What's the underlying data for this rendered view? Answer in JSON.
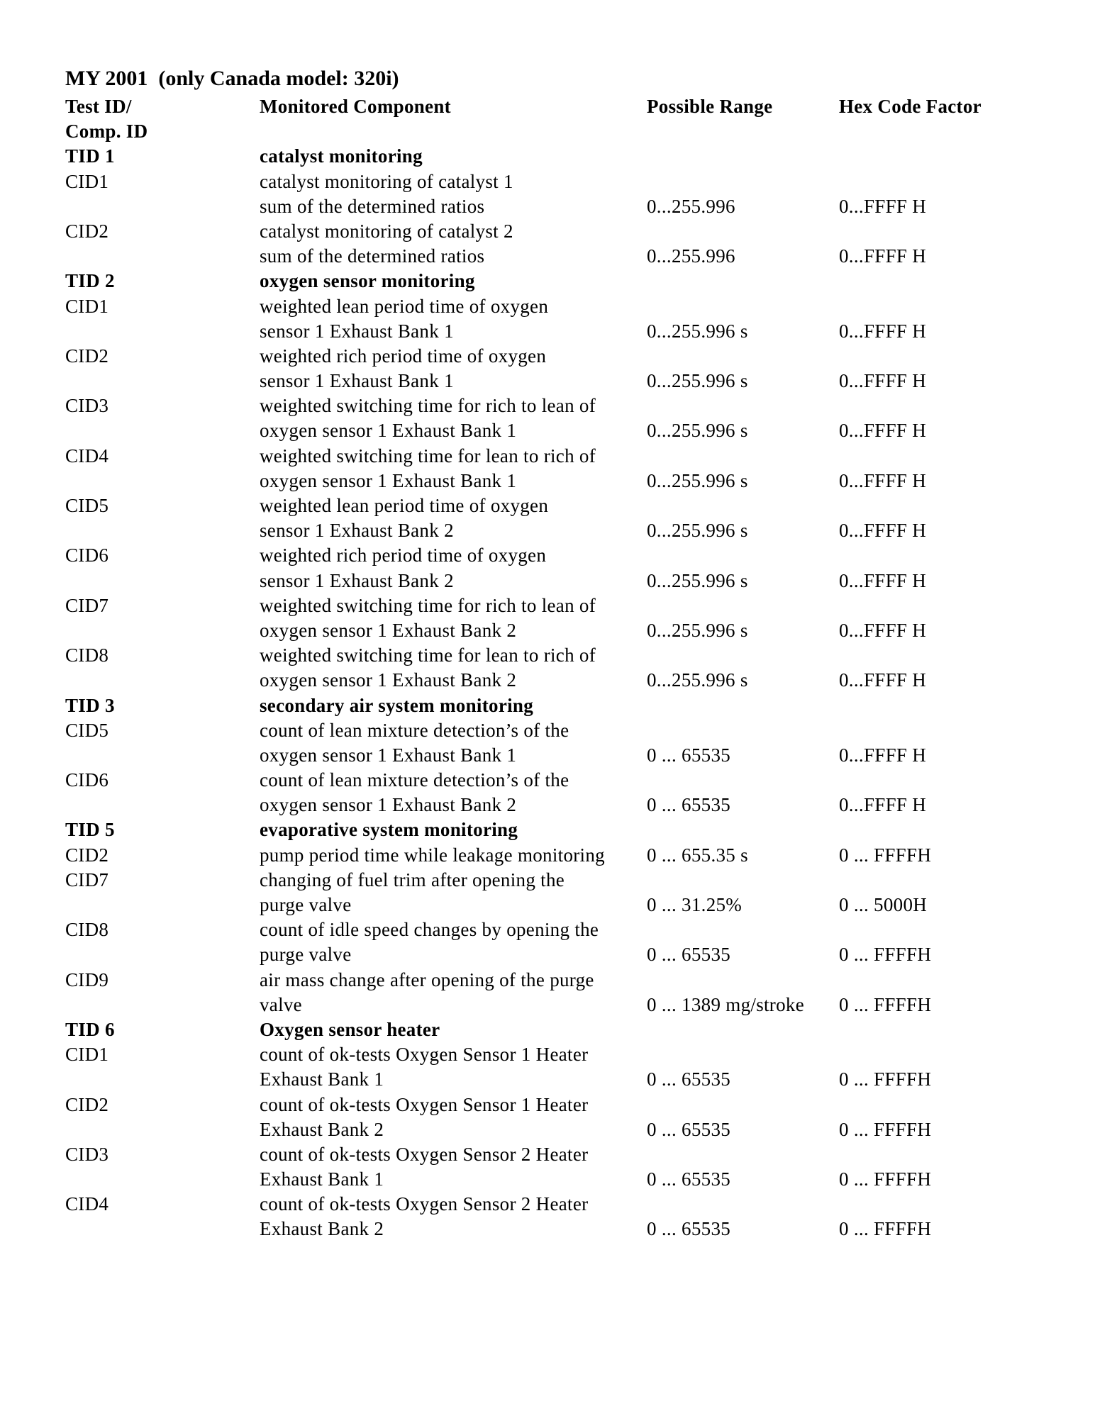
{
  "title": "MY 2001  (only Canada model: 320i)",
  "columns": [
    "Test ID/",
    "Monitored Component",
    "Possible Range",
    "Hex Code Factor"
  ],
  "column_header_line2": "Comp. ID",
  "rows": [
    {
      "id": "TID 1",
      "text": "catalyst monitoring",
      "range": "",
      "hex": "",
      "bold": true
    },
    {
      "id": "CID1",
      "text": "catalyst monitoring of catalyst 1",
      "range": "",
      "hex": ""
    },
    {
      "id": "",
      "text": "sum of the determined ratios",
      "range": "0...255.996",
      "hex": "0...FFFF H"
    },
    {
      "id": "CID2",
      "text": "catalyst monitoring of catalyst 2",
      "range": "",
      "hex": ""
    },
    {
      "id": "",
      "text": "sum of the determined ratios",
      "range": "0...255.996",
      "hex": "0...FFFF H"
    },
    {
      "id": "TID 2",
      "text": "oxygen sensor monitoring",
      "range": "",
      "hex": "",
      "bold": true
    },
    {
      "id": "CID1",
      "text": "weighted lean period time of oxygen",
      "range": "",
      "hex": ""
    },
    {
      "id": "",
      "text": "sensor 1 Exhaust Bank 1",
      "range": "0...255.996 s",
      "hex": "0...FFFF H"
    },
    {
      "id": "CID2",
      "text": "weighted rich period time of oxygen",
      "range": "",
      "hex": ""
    },
    {
      "id": "",
      "text": "sensor 1 Exhaust Bank 1",
      "range": "0...255.996 s",
      "hex": "0...FFFF H"
    },
    {
      "id": "CID3",
      "text": "weighted switching time for rich to lean of",
      "range": "",
      "hex": ""
    },
    {
      "id": "",
      "text": "oxygen sensor 1 Exhaust Bank 1",
      "range": "0...255.996 s",
      "hex": "0...FFFF H"
    },
    {
      "id": "CID4",
      "text": "weighted switching time for lean to rich of",
      "range": "",
      "hex": ""
    },
    {
      "id": "",
      "text": "oxygen sensor 1 Exhaust Bank 1",
      "range": "0...255.996 s",
      "hex": "0...FFFF H"
    },
    {
      "id": "CID5",
      "text": "weighted lean period time of oxygen",
      "range": "",
      "hex": ""
    },
    {
      "id": "",
      "text": "sensor 1 Exhaust Bank 2",
      "range": "0...255.996 s",
      "hex": "0...FFFF H"
    },
    {
      "id": "CID6",
      "text": "weighted rich period time of oxygen",
      "range": "",
      "hex": ""
    },
    {
      "id": "",
      "text": "sensor 1 Exhaust Bank 2",
      "range": "0...255.996 s",
      "hex": "0...FFFF H"
    },
    {
      "id": "CID7",
      "text": "weighted switching time for rich to lean of",
      "range": "",
      "hex": ""
    },
    {
      "id": "",
      "text": "oxygen sensor 1 Exhaust Bank 2",
      "range": "0...255.996 s",
      "hex": "0...FFFF H"
    },
    {
      "id": "CID8",
      "text": "weighted switching time for lean to rich of",
      "range": "",
      "hex": ""
    },
    {
      "id": "",
      "text": "oxygen sensor 1 Exhaust Bank 2",
      "range": "0...255.996 s",
      "hex": "0...FFFF H"
    },
    {
      "id": "TID 3",
      "text": "secondary air system monitoring",
      "range": "",
      "hex": "",
      "bold": true
    },
    {
      "id": "CID5",
      "text": "count of lean mixture detection’s of the",
      "range": "",
      "hex": ""
    },
    {
      "id": "",
      "text": "oxygen sensor 1 Exhaust Bank 1",
      "range": "0 ... 65535",
      "hex": "0...FFFF H"
    },
    {
      "id": "CID6",
      "text": "count of lean mixture detection’s of the",
      "range": "",
      "hex": ""
    },
    {
      "id": "",
      "text": "oxygen sensor 1 Exhaust Bank 2",
      "range": "0 ... 65535",
      "hex": "0...FFFF H"
    },
    {
      "id": "TID 5",
      "text": "evaporative system monitoring",
      "range": "",
      "hex": "",
      "bold": true
    },
    {
      "id": "CID2",
      "text": "pump period time while leakage monitoring",
      "range": "0 ... 655.35 s",
      "hex": "0 ... FFFFH"
    },
    {
      "id": "CID7",
      "text": "changing of fuel trim after opening the",
      "range": "",
      "hex": ""
    },
    {
      "id": "",
      "text": "purge valve",
      "range": "0 ... 31.25%",
      "hex": "0 ... 5000H"
    },
    {
      "id": "CID8",
      "text": "count of idle speed changes by opening the",
      "range": "",
      "hex": ""
    },
    {
      "id": "",
      "text": "purge valve",
      "range": "0 ... 65535",
      "hex": "0 ... FFFFH"
    },
    {
      "id": "CID9",
      "text": "air mass change after opening of the purge",
      "range": "",
      "hex": ""
    },
    {
      "id": "",
      "text": "valve",
      "range": "0 ... 1389 mg/stroke",
      "hex": "0 ... FFFFH"
    },
    {
      "id": "TID 6",
      "text": "Oxygen sensor heater",
      "range": "",
      "hex": "",
      "bold": true
    },
    {
      "id": "CID1",
      "text": "count of ok-tests Oxygen Sensor 1 Heater",
      "range": "",
      "hex": ""
    },
    {
      "id": "",
      "text": "Exhaust Bank 1",
      "range": "0 ... 65535",
      "hex": "0 ... FFFFH"
    },
    {
      "id": "CID2",
      "text": "count of ok-tests Oxygen Sensor 1 Heater",
      "range": "",
      "hex": ""
    },
    {
      "id": "",
      "text": "Exhaust Bank 2",
      "range": "0 ... 65535",
      "hex": "0 ... FFFFH"
    },
    {
      "id": "CID3",
      "text": "count of ok-tests Oxygen Sensor 2 Heater",
      "range": "",
      "hex": ""
    },
    {
      "id": "",
      "text": "Exhaust Bank 1",
      "range": "0 ... 65535",
      "hex": "0 ... FFFFH"
    },
    {
      "id": "CID4",
      "text": "count of ok-tests Oxygen Sensor 2 Heater",
      "range": "",
      "hex": ""
    },
    {
      "id": "",
      "text": "Exhaust Bank 2",
      "range": "0 ... 65535",
      "hex": "0 ... FFFFH"
    }
  ]
}
